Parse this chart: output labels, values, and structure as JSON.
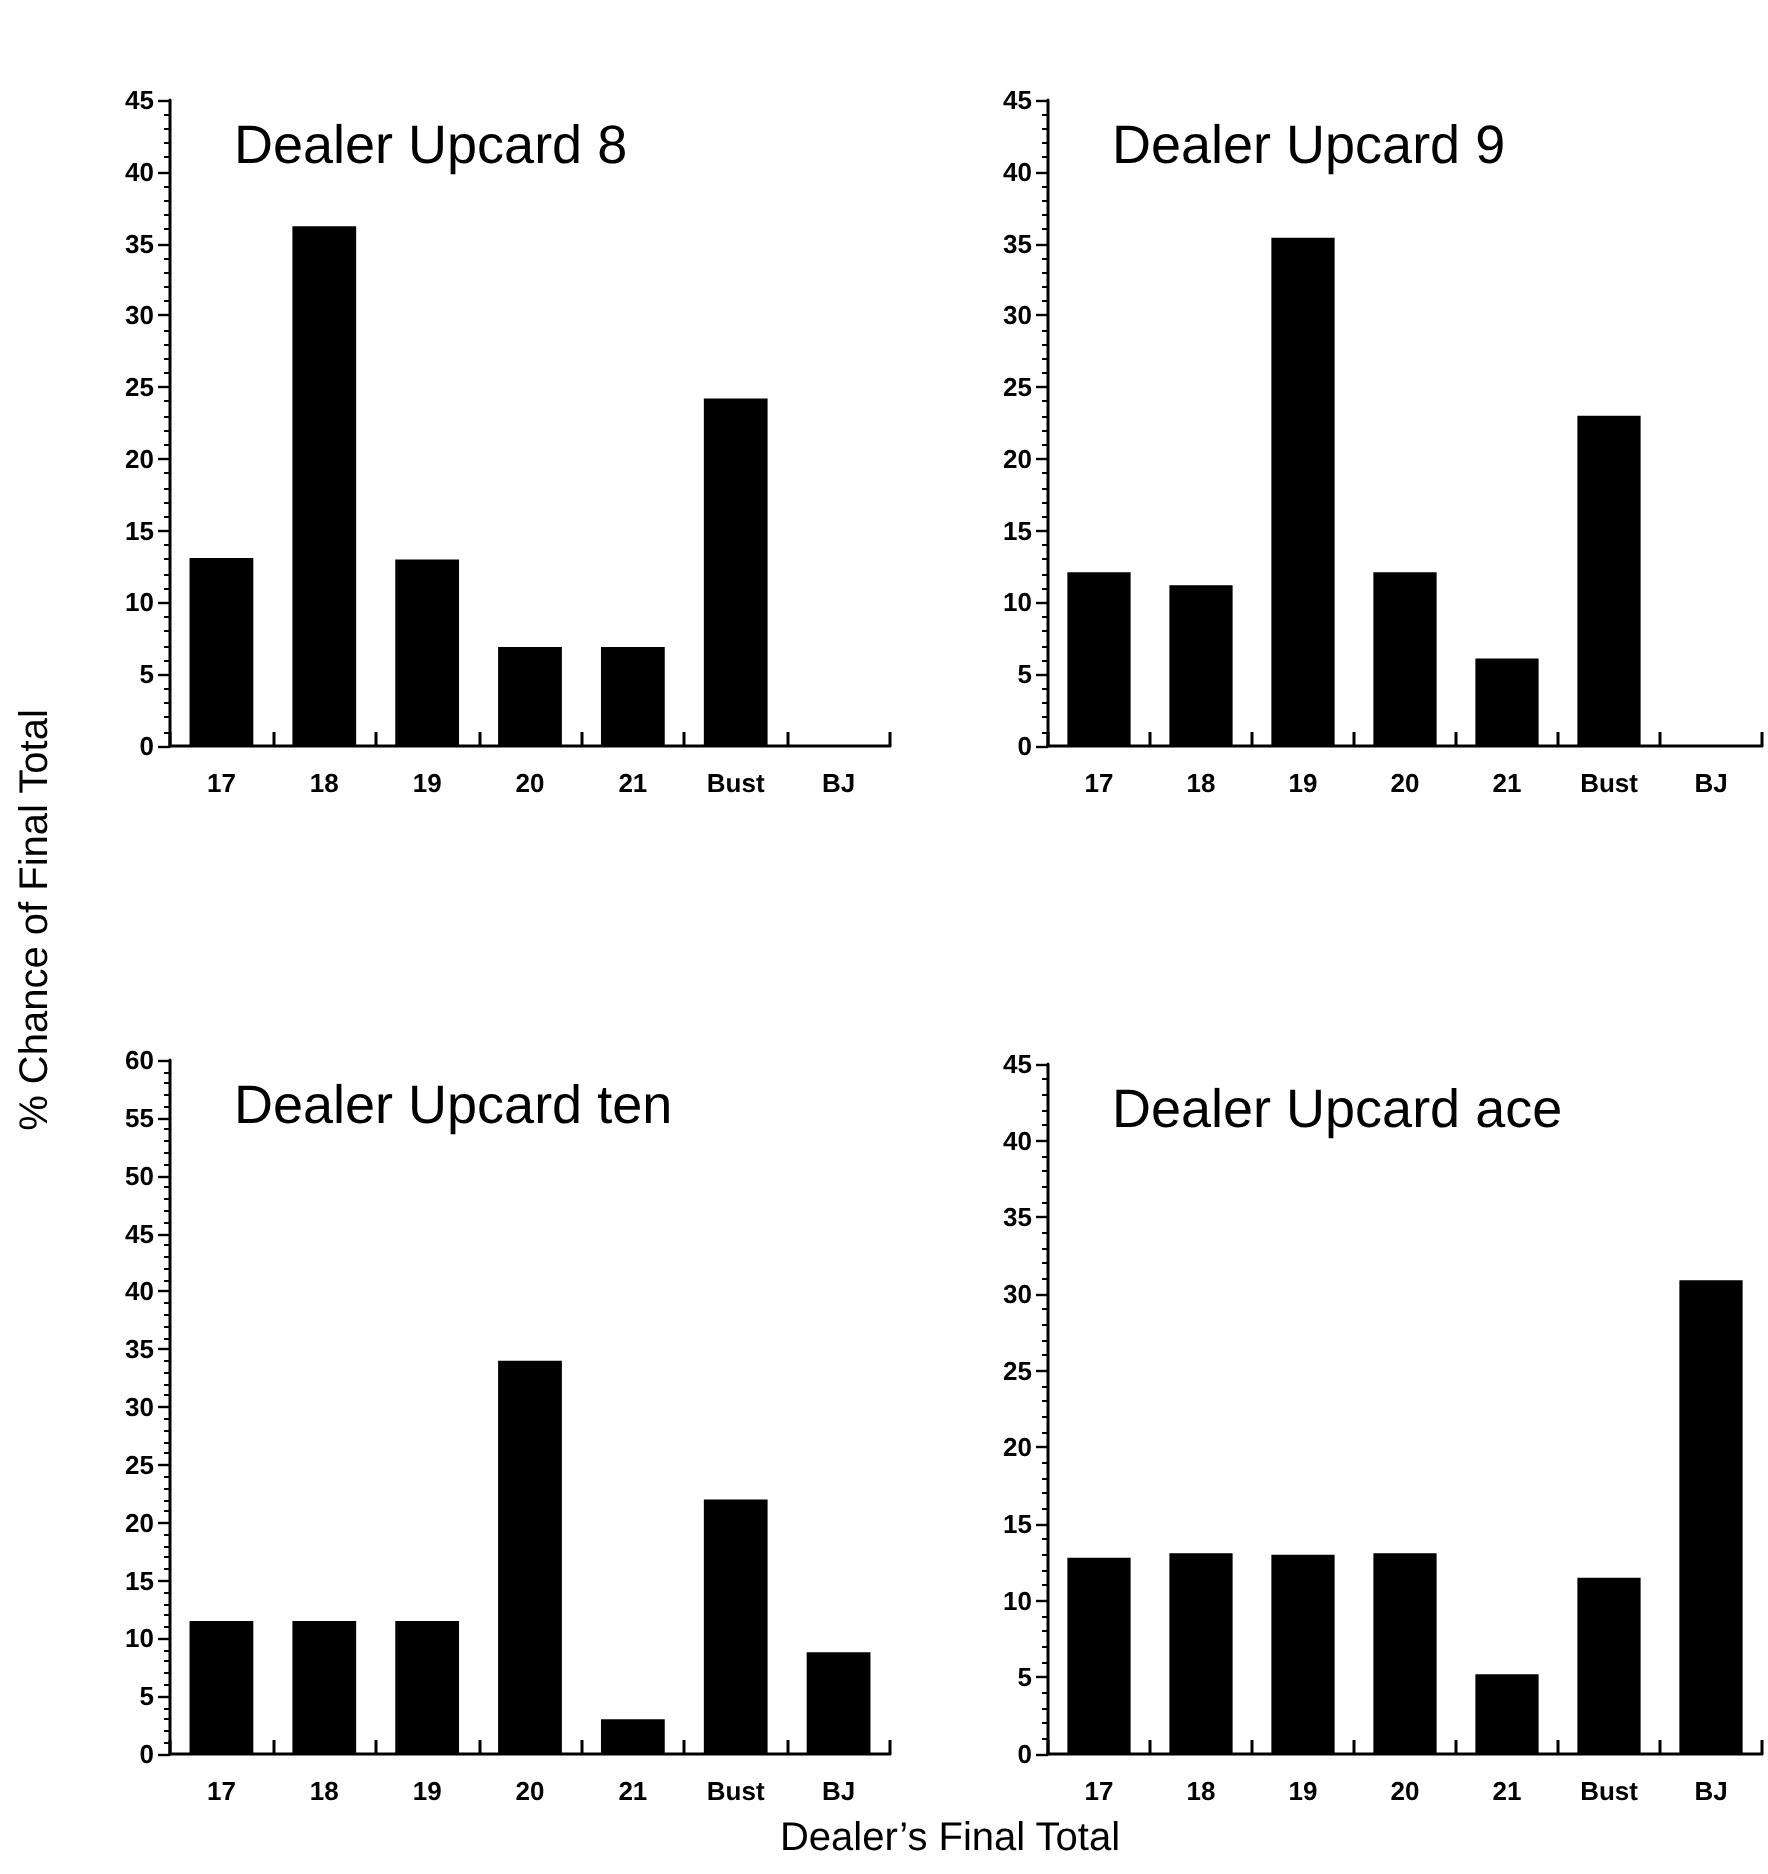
{
  "chart_data": [
    {
      "type": "bar",
      "title": "Dealer Upcard 8",
      "ylabel": "% Chance of Final Total",
      "categories": [
        "17",
        "18",
        "19",
        "20",
        "21",
        "Bust",
        "BJ"
      ],
      "values": [
        13.1,
        36.2,
        13.0,
        6.9,
        6.9,
        24.2,
        0
      ],
      "color": "#000000",
      "ylim": [
        0,
        45
      ],
      "yticks": [
        0,
        5,
        10,
        15,
        20,
        25,
        30,
        35,
        40,
        45
      ],
      "grid": false
    },
    {
      "type": "bar",
      "title": "Dealer Upcard 9",
      "categories": [
        "17",
        "18",
        "19",
        "20",
        "21",
        "Bust",
        "BJ"
      ],
      "values": [
        12.1,
        11.2,
        35.4,
        12.1,
        6.1,
        23.0,
        0
      ],
      "color": "#000000",
      "ylim": [
        0,
        45
      ],
      "yticks": [
        0,
        5,
        10,
        15,
        20,
        25,
        30,
        35,
        40,
        45
      ],
      "grid": false
    },
    {
      "type": "bar",
      "title": "Dealer Upcard ten",
      "xlabel": "Dealer’s Final Total",
      "categories": [
        "17",
        "18",
        "19",
        "20",
        "21",
        "Bust",
        "BJ"
      ],
      "values": [
        11.5,
        11.5,
        11.5,
        34.0,
        3.0,
        22.0,
        8.8
      ],
      "color": "#000000",
      "ylim": [
        0,
        60
      ],
      "yticks": [
        0,
        5,
        10,
        15,
        20,
        25,
        30,
        35,
        40,
        45,
        50,
        55,
        60
      ],
      "grid": false
    },
    {
      "type": "bar",
      "title": "Dealer Upcard ace",
      "categories": [
        "17",
        "18",
        "19",
        "20",
        "21",
        "Bust",
        "BJ"
      ],
      "values": [
        12.8,
        13.1,
        13.0,
        13.1,
        5.2,
        11.5,
        30.9
      ],
      "color": "#000000",
      "ylim": [
        0,
        45
      ],
      "yticks": [
        0,
        5,
        10,
        15,
        20,
        25,
        30,
        35,
        40,
        45
      ],
      "grid": false
    }
  ]
}
